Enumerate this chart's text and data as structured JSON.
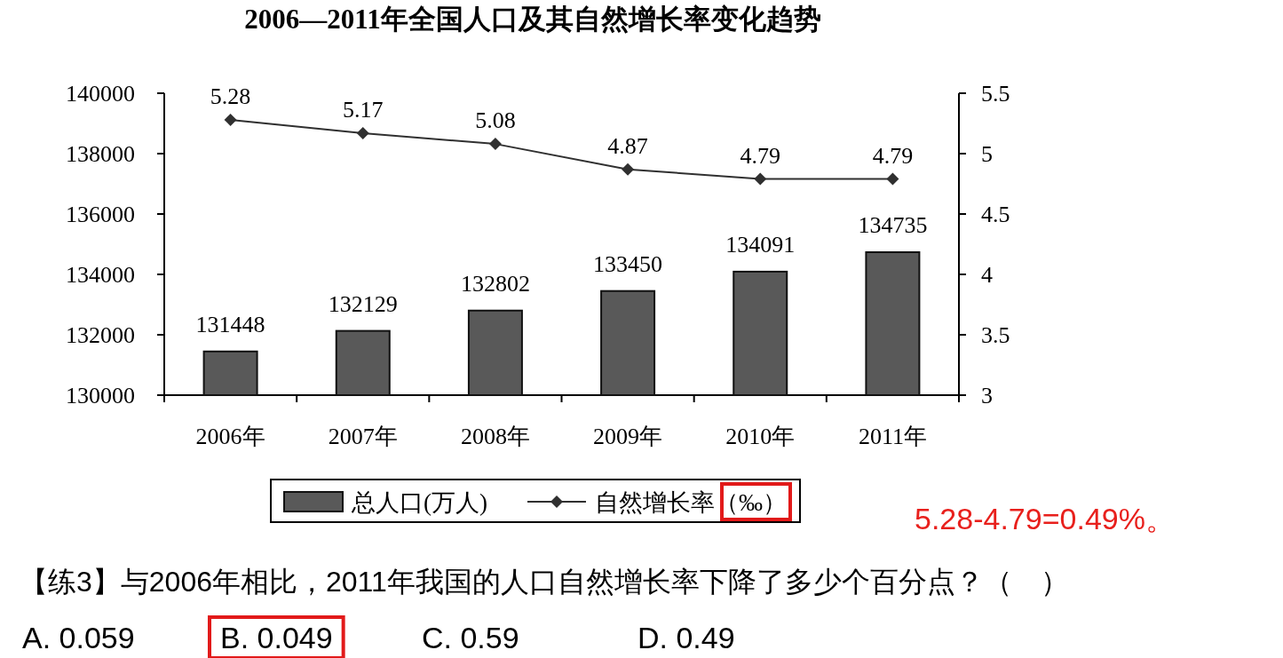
{
  "chart_data": {
    "type": "bar",
    "title": "2006—2011年全国人口及其自然增长率变化趋势",
    "categories": [
      "2006年",
      "2007年",
      "2008年",
      "2009年",
      "2010年",
      "2011年"
    ],
    "series": [
      {
        "name": "总人口(万人)",
        "color": "#595959",
        "values": [
          131448,
          132129,
          132802,
          133450,
          134091,
          134735
        ]
      },
      {
        "name": "自然增长率（‰）",
        "type": "line",
        "axis": "y2",
        "color": "#303030",
        "values": [
          5.28,
          5.17,
          5.08,
          4.87,
          4.79,
          4.79
        ]
      }
    ],
    "ylim": [
      130000,
      140000
    ],
    "yticks": [
      130000,
      132000,
      134000,
      136000,
      138000,
      140000
    ],
    "y2lim": [
      3,
      5.5
    ],
    "y2ticks": [
      3,
      3.5,
      4,
      4.5,
      5,
      5.5
    ],
    "data_labels": true,
    "legend": "bottom",
    "marker": "diamond",
    "grid": false,
    "annotations": [
      "5.28-4.79=0.49%。",
      "【练3】与2006年相比，2011年我国的人口自然增长率下降了多少个百分点？（　）",
      "A. 0.059",
      "B. 0.049",
      "C. 0.59",
      "D. 0.49"
    ]
  }
}
